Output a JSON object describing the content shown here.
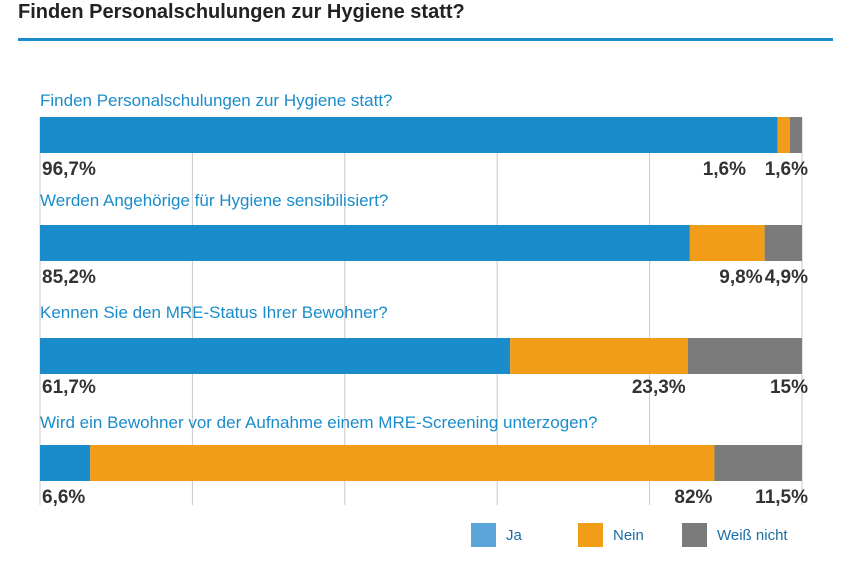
{
  "header": {
    "title": "Finden Personalschulungen zur Hygiene statt?"
  },
  "colors": {
    "accent": "#1a8ccb",
    "ja": "#1a8ccb",
    "nein": "#f29d17",
    "weiss_nicht": "#7b7b7b",
    "legend_ja": "#5aa5d9",
    "gridline": "#c8c8c8",
    "question_text": "#1a8ccb",
    "value_text": "#333333"
  },
  "chart_data": {
    "type": "bar",
    "orientation": "horizontal",
    "stacked": true,
    "xlim": [
      0,
      100
    ],
    "grid": true,
    "legend_position": "bottom-right",
    "categories": [
      "Finden Personalschulungen zur Hygiene statt?",
      "Werden Angehörige für Hygiene sensibilisiert?",
      "Kennen Sie den MRE-Status Ihrer Bewohner?",
      "Wird ein Bewohner vor der Aufnahme einem MRE-Screening unterzogen?"
    ],
    "series": [
      {
        "name": "Ja",
        "values": [
          96.7,
          85.2,
          61.7,
          6.6
        ],
        "labels": [
          "96,7%",
          "85,2%",
          "61,7%",
          "6,6%"
        ]
      },
      {
        "name": "Nein",
        "values": [
          1.6,
          9.8,
          23.3,
          82
        ],
        "labels": [
          "1,6%",
          "9,8%",
          "23,3%",
          "82%"
        ]
      },
      {
        "name": "Weiß nicht",
        "values": [
          1.6,
          4.9,
          15,
          11.5
        ],
        "labels": [
          "1,6%",
          "4,9%",
          "15%",
          "11,5%"
        ]
      }
    ]
  }
}
